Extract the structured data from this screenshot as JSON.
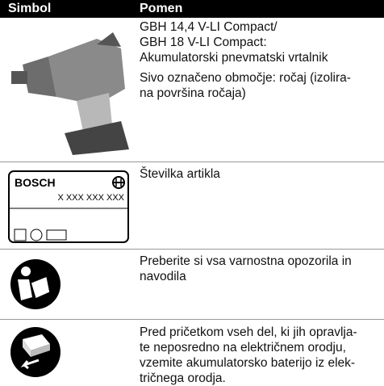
{
  "header": {
    "col1": "Simbol",
    "col2": "Pomen"
  },
  "rows": [
    {
      "description": [
        [
          "GBH 14,4 V-LI Compact/",
          "GBH 18 V-LI Compact:",
          "Akumulatorski pnevmatski vrtalnik"
        ],
        [
          "Sivo označeno območje: ročaj (izolira-",
          "na površina ročaja)"
        ]
      ]
    },
    {
      "label": {
        "brand": "BOSCH",
        "number": "X XXX XXX XXX"
      },
      "description": [
        [
          "Številka artikla"
        ]
      ]
    },
    {
      "description": [
        [
          "Preberite si vsa varnostna opozorila in",
          "navodila"
        ]
      ]
    },
    {
      "description": [
        [
          "Pred pričetkom vseh del, ki jih opravlja-",
          "te neposredno na električnem orodju,",
          "vzemite akumulatorsko baterijo iz elek-",
          "tričnega orodja."
        ]
      ]
    }
  ]
}
